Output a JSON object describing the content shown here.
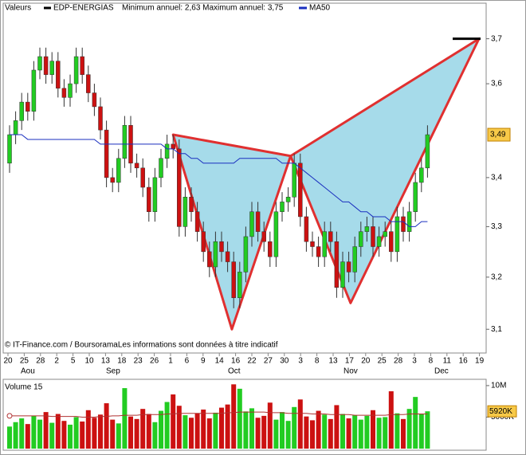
{
  "chart_data": {
    "type": "candlestick",
    "legend": {
      "label": "Valeurs",
      "symbol": "EDP-ENERGIAS",
      "range_text": "Minimum annuel: 2,63 Maximum annuel: 3,75",
      "ma_name": "MA50"
    },
    "footer": "© IT-Finance.com / BoursoramaLes informations sont données à titre indicatif",
    "xlabels": [
      "20",
      "25",
      "28",
      "2",
      "5",
      "10",
      "13",
      "18",
      "23",
      "26",
      "1",
      "6",
      "9",
      "14",
      "16",
      "22",
      "27",
      "30",
      "3",
      "8",
      "13",
      "17",
      "20",
      "25",
      "28",
      "3",
      "8",
      "11",
      "16",
      "19"
    ],
    "months": [
      "Aou",
      "Sep",
      "Oct",
      "Nov",
      "Dec"
    ],
    "ylog": true,
    "ylim": [
      3.06,
      3.77
    ],
    "yticks": [
      {
        "value": 3.1,
        "label": "3,1"
      },
      {
        "value": 3.2,
        "label": "3,2"
      },
      {
        "value": 3.3,
        "label": "3,3"
      },
      {
        "value": 3.4,
        "label": "3,4"
      },
      {
        "value": 3.6,
        "label": "3,6"
      },
      {
        "value": 3.7,
        "label": "3,7"
      }
    ],
    "last_price": {
      "value": 3.49,
      "label": "3,49"
    },
    "up_color": "#22cc22",
    "down_color": "#cc1111",
    "ma_color": "#1a2fbf",
    "open": [
      3.43,
      3.49,
      3.52,
      3.56,
      3.54,
      3.63,
      3.66,
      3.62,
      3.65,
      3.59,
      3.57,
      3.6,
      3.66,
      3.62,
      3.58,
      3.55,
      3.5,
      3.4,
      3.39,
      3.44,
      3.51,
      3.43,
      3.42,
      3.38,
      3.33,
      3.4,
      3.44,
      3.47,
      3.46,
      3.3,
      3.36,
      3.33,
      3.29,
      3.25,
      3.22,
      3.27,
      3.25,
      3.23,
      3.16,
      3.21,
      3.28,
      3.33,
      3.29,
      3.27,
      3.24,
      3.33,
      3.35,
      3.36,
      3.43,
      3.32,
      3.27,
      3.26,
      3.24,
      3.29,
      3.27,
      3.18,
      3.23,
      3.21,
      3.26,
      3.29,
      3.3,
      3.26,
      3.28,
      3.29,
      3.25,
      3.32,
      3.29,
      3.33,
      3.39,
      3.42
    ],
    "high": [
      3.51,
      3.54,
      3.58,
      3.58,
      3.65,
      3.68,
      3.68,
      3.67,
      3.67,
      3.61,
      3.62,
      3.68,
      3.68,
      3.64,
      3.6,
      3.57,
      3.52,
      3.42,
      3.46,
      3.53,
      3.53,
      3.45,
      3.44,
      3.4,
      3.42,
      3.46,
      3.49,
      3.49,
      3.48,
      3.38,
      3.38,
      3.35,
      3.31,
      3.27,
      3.29,
      3.29,
      3.27,
      3.25,
      3.23,
      3.3,
      3.35,
      3.35,
      3.31,
      3.29,
      3.35,
      3.37,
      3.38,
      3.45,
      3.45,
      3.34,
      3.29,
      3.28,
      3.31,
      3.31,
      3.29,
      3.25,
      3.25,
      3.28,
      3.31,
      3.32,
      3.32,
      3.3,
      3.31,
      3.31,
      3.34,
      3.34,
      3.35,
      3.41,
      3.44,
      3.51
    ],
    "low": [
      3.41,
      3.47,
      3.5,
      3.52,
      3.52,
      3.61,
      3.6,
      3.6,
      3.57,
      3.55,
      3.55,
      3.58,
      3.6,
      3.56,
      3.53,
      3.48,
      3.38,
      3.37,
      3.37,
      3.42,
      3.41,
      3.4,
      3.36,
      3.31,
      3.31,
      3.38,
      3.42,
      3.44,
      3.28,
      3.28,
      3.31,
      3.27,
      3.23,
      3.2,
      3.2,
      3.23,
      3.21,
      3.14,
      3.14,
      3.19,
      3.26,
      3.27,
      3.25,
      3.22,
      3.22,
      3.31,
      3.33,
      3.34,
      3.3,
      3.25,
      3.24,
      3.22,
      3.22,
      3.25,
      3.16,
      3.16,
      3.19,
      3.19,
      3.24,
      3.27,
      3.24,
      3.24,
      3.26,
      3.23,
      3.23,
      3.27,
      3.27,
      3.31,
      3.37,
      3.4
    ],
    "close": [
      3.49,
      3.52,
      3.56,
      3.54,
      3.63,
      3.66,
      3.62,
      3.65,
      3.59,
      3.57,
      3.6,
      3.66,
      3.62,
      3.58,
      3.55,
      3.5,
      3.4,
      3.39,
      3.44,
      3.51,
      3.43,
      3.42,
      3.38,
      3.33,
      3.4,
      3.44,
      3.47,
      3.46,
      3.3,
      3.36,
      3.33,
      3.29,
      3.25,
      3.22,
      3.27,
      3.25,
      3.23,
      3.16,
      3.21,
      3.28,
      3.33,
      3.29,
      3.27,
      3.24,
      3.33,
      3.35,
      3.36,
      3.43,
      3.32,
      3.27,
      3.26,
      3.24,
      3.29,
      3.27,
      3.18,
      3.23,
      3.21,
      3.26,
      3.29,
      3.3,
      3.26,
      3.28,
      3.29,
      3.25,
      3.32,
      3.29,
      3.33,
      3.39,
      3.42,
      3.49
    ],
    "ma": [
      3.49,
      3.49,
      3.49,
      3.48,
      3.48,
      3.48,
      3.48,
      3.48,
      3.48,
      3.48,
      3.48,
      3.48,
      3.48,
      3.48,
      3.48,
      3.47,
      3.47,
      3.47,
      3.47,
      3.47,
      3.47,
      3.47,
      3.47,
      3.47,
      3.47,
      3.47,
      3.46,
      3.46,
      3.45,
      3.45,
      3.44,
      3.44,
      3.43,
      3.43,
      3.43,
      3.43,
      3.43,
      3.43,
      3.44,
      3.44,
      3.44,
      3.44,
      3.44,
      3.44,
      3.44,
      3.43,
      3.43,
      3.43,
      3.42,
      3.41,
      3.4,
      3.39,
      3.38,
      3.37,
      3.36,
      3.35,
      3.35,
      3.34,
      3.33,
      3.33,
      3.32,
      3.32,
      3.32,
      3.31,
      3.31,
      3.31,
      3.3,
      3.3,
      3.31,
      3.31
    ],
    "pattern": {
      "color": "#e03030",
      "fill": "#a6dbea",
      "x": [
        27,
        36.7,
        46.4,
        56.3,
        77.5
      ],
      "y": [
        3.49,
        3.1,
        3.445,
        3.15,
        3.7
      ]
    },
    "volume": {
      "title": "Volume 15",
      "vlim": [
        0,
        11
      ],
      "ticks": [
        {
          "value": 10,
          "label": "10M"
        },
        {
          "value": 5,
          "label": "5000K"
        }
      ],
      "values": [
        3.5,
        4.2,
        4.8,
        3.9,
        5.2,
        4.6,
        5.8,
        4.1,
        5.5,
        4.4,
        3.8,
        5.0,
        4.3,
        6.1,
        4.9,
        5.4,
        7.2,
        4.6,
        4.0,
        9.6,
        5.1,
        4.7,
        6.3,
        5.5,
        4.2,
        6.0,
        7.4,
        8.6,
        6.8,
        5.3,
        4.9,
        5.6,
        6.2,
        4.8,
        5.7,
        6.5,
        7.0,
        10.2,
        9.5,
        5.9,
        6.4,
        4.9,
        5.2,
        7.3,
        4.6,
        5.8,
        4.4,
        6.6,
        7.8,
        5.1,
        4.5,
        6.0,
        5.4,
        4.7,
        6.9,
        5.5,
        4.8,
        5.3,
        4.6,
        5.2,
        6.1,
        4.9,
        5.0,
        9.1,
        5.6,
        4.7,
        6.3,
        8.2,
        5.5,
        5.92
      ],
      "last": {
        "value": 5.92,
        "label": "5920K"
      },
      "ma_color": "#b03030",
      "ma": [
        5.2,
        5.2,
        5.2,
        5.2,
        5.2,
        5.2,
        5.2,
        5.1,
        5.1,
        5.1,
        5.1,
        5.1,
        5.0,
        5.0,
        5.0,
        5.1,
        5.1,
        5.2,
        5.2,
        5.3,
        5.3,
        5.3,
        5.4,
        5.4,
        5.4,
        5.4,
        5.5,
        5.5,
        5.6,
        5.6,
        5.6,
        5.6,
        5.6,
        5.6,
        5.6,
        5.6,
        5.7,
        5.7,
        5.8,
        5.8,
        5.8,
        5.8,
        5.8,
        5.7,
        5.7,
        5.7,
        5.6,
        5.6,
        5.6,
        5.6,
        5.5,
        5.5,
        5.5,
        5.4,
        5.4,
        5.4,
        5.4,
        5.3,
        5.3,
        5.3,
        5.3,
        5.3,
        5.3,
        5.4,
        5.4,
        5.4,
        5.5,
        5.5,
        5.5,
        5.5
      ]
    }
  }
}
